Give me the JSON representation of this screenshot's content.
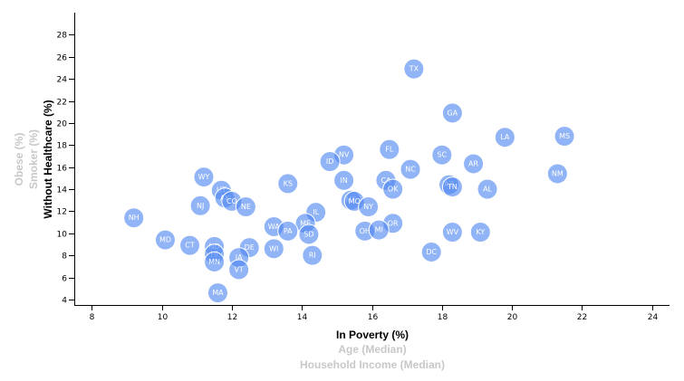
{
  "chart_data": {
    "type": "scatter",
    "xlim": [
      7.5,
      24.5
    ],
    "ylim": [
      3.5,
      30
    ],
    "x_ticks": [
      8,
      10,
      12,
      14,
      16,
      18,
      20,
      22,
      24
    ],
    "y_ticks": [
      4,
      6,
      8,
      10,
      12,
      14,
      16,
      18,
      20,
      22,
      24,
      26,
      28
    ],
    "x_axis_labels": [
      {
        "text": "In Poverty (%)",
        "active": true
      },
      {
        "text": "Age (Median)",
        "active": false
      },
      {
        "text": "Household Income (Median)",
        "active": false
      }
    ],
    "y_axis_labels": [
      {
        "text": "Without Healthcare (%)",
        "active": true
      },
      {
        "text": "Smoker (%)",
        "active": false
      },
      {
        "text": "Obese (%)",
        "active": false
      }
    ],
    "colors": {
      "point": "#4d86f0",
      "label": "#ffffff",
      "active": "#000000",
      "inactive": "#c8c8c8"
    },
    "points": [
      {
        "label": "TX",
        "x": 17.2,
        "y": 24.9
      },
      {
        "label": "GA",
        "x": 18.3,
        "y": 20.9
      },
      {
        "label": "LA",
        "x": 19.8,
        "y": 18.7
      },
      {
        "label": "MS",
        "x": 21.5,
        "y": 18.8
      },
      {
        "label": "FL",
        "x": 16.5,
        "y": 17.6
      },
      {
        "label": "NV",
        "x": 15.2,
        "y": 17.1
      },
      {
        "label": "SC",
        "x": 18.0,
        "y": 17.1
      },
      {
        "label": "ID",
        "x": 14.8,
        "y": 16.5
      },
      {
        "label": "AR",
        "x": 18.9,
        "y": 16.3
      },
      {
        "label": "NC",
        "x": 17.1,
        "y": 15.8
      },
      {
        "label": "NM",
        "x": 21.3,
        "y": 15.4
      },
      {
        "label": "WY",
        "x": 11.2,
        "y": 15.1
      },
      {
        "label": "IN",
        "x": 15.2,
        "y": 14.8
      },
      {
        "label": "KS",
        "x": 13.6,
        "y": 14.5
      },
      {
        "label": "CA",
        "x": 16.4,
        "y": 14.8
      },
      {
        "label": "AZ",
        "x": 18.2,
        "y": 14.4
      },
      {
        "label": "TN",
        "x": 18.3,
        "y": 14.2
      },
      {
        "label": "AL",
        "x": 19.3,
        "y": 14.0
      },
      {
        "label": "OK",
        "x": 16.6,
        "y": 14.0
      },
      {
        "label": "UT",
        "x": 11.7,
        "y": 13.9
      },
      {
        "label": "AK",
        "x": 11.8,
        "y": 13.2
      },
      {
        "label": "CO",
        "x": 12.0,
        "y": 12.9
      },
      {
        "label": "MT",
        "x": 15.4,
        "y": 13.0
      },
      {
        "label": "MO",
        "x": 15.5,
        "y": 12.9
      },
      {
        "label": "NE",
        "x": 12.4,
        "y": 12.4
      },
      {
        "label": "NJ",
        "x": 11.1,
        "y": 12.5
      },
      {
        "label": "NY",
        "x": 15.9,
        "y": 12.4
      },
      {
        "label": "IL",
        "x": 14.4,
        "y": 11.9
      },
      {
        "label": "NH",
        "x": 9.2,
        "y": 11.4
      },
      {
        "label": "OR",
        "x": 16.6,
        "y": 10.9
      },
      {
        "label": "WA",
        "x": 13.2,
        "y": 10.6
      },
      {
        "label": "ME",
        "x": 14.1,
        "y": 10.9
      },
      {
        "label": "PA",
        "x": 13.6,
        "y": 10.2
      },
      {
        "label": "OH",
        "x": 15.8,
        "y": 10.2
      },
      {
        "label": "MI",
        "x": 16.2,
        "y": 10.3
      },
      {
        "label": "SD",
        "x": 14.2,
        "y": 9.9
      },
      {
        "label": "WV",
        "x": 18.3,
        "y": 10.1
      },
      {
        "label": "KY",
        "x": 19.1,
        "y": 10.1
      },
      {
        "label": "MD",
        "x": 10.1,
        "y": 9.4
      },
      {
        "label": "CT",
        "x": 10.8,
        "y": 8.9
      },
      {
        "label": "ND",
        "x": 11.5,
        "y": 8.8
      },
      {
        "label": "DE",
        "x": 12.5,
        "y": 8.7
      },
      {
        "label": "WI",
        "x": 13.2,
        "y": 8.6
      },
      {
        "label": "DC",
        "x": 17.7,
        "y": 8.3
      },
      {
        "label": "RI",
        "x": 14.3,
        "y": 8.0
      },
      {
        "label": "HI",
        "x": 11.5,
        "y": 8.1
      },
      {
        "label": "IA",
        "x": 12.2,
        "y": 7.8
      },
      {
        "label": "MN",
        "x": 11.5,
        "y": 7.4
      },
      {
        "label": "VT",
        "x": 12.2,
        "y": 6.7
      },
      {
        "label": "MA",
        "x": 11.6,
        "y": 4.6
      }
    ]
  }
}
